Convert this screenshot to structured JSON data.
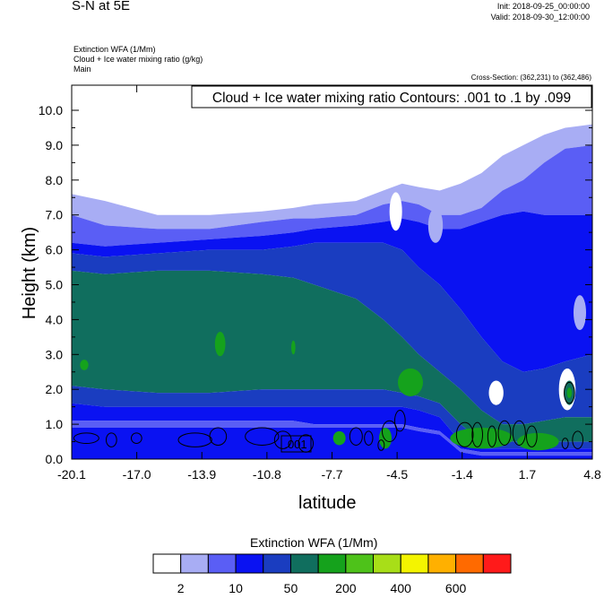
{
  "header": {
    "title": "S-N at 5E",
    "init": "Init: 2018-09-25_00:00:00",
    "valid": "Valid: 2018-09-30_12:00:00",
    "field_extinction": "Extinction WFA   (1/Mm)",
    "field_cloud": "Cloud + Ice water mixing ratio   (g/kg)",
    "field_main": "Main",
    "cross_section": "Cross-Section: (362,231) to (362,486)"
  },
  "chart_data": {
    "type": "heatmap",
    "title": "S-N at 5E",
    "contour_info": "Cloud + Ice water mixing ratio Contours: .001 to .1 by .099",
    "contour_label": ".001",
    "xlabel": "latitude",
    "ylabel": "Height (km)",
    "x_ticks": [
      "-20.1",
      "-17.0",
      "-13.9",
      "-10.8",
      "-7.7",
      "-4.5",
      "-1.4",
      "1.7",
      "4.8"
    ],
    "x_range": [
      -20.1,
      4.8
    ],
    "y_ticks": [
      "0.0",
      "1.0",
      "2.0",
      "3.0",
      "4.0",
      "5.0",
      "6.0",
      "7.0",
      "8.0",
      "9.0",
      "10.0"
    ],
    "y_range": [
      0,
      10.0
    ],
    "colorbar": {
      "title": "Extinction WFA  (1/Mm)",
      "labels": [
        "2",
        "10",
        "50",
        "200",
        "400",
        "600"
      ],
      "colors": [
        "#ffffff",
        "#a8adf4",
        "#5a5ef5",
        "#0a12f2",
        "#1a3dc0",
        "#106e5e",
        "#15a21c",
        "#4ec21a",
        "#a8de18",
        "#f4f400",
        "#ffb000",
        "#ff6a00",
        "#ff1a1a"
      ]
    },
    "extinction_bands": [
      {
        "level": 0,
        "x": [
          -20.1,
          -18.5,
          -16,
          -13.5,
          -11,
          -9.5,
          -8.5,
          -6.5,
          -5.2,
          -4.3,
          -3.5,
          -2.5,
          -1.5,
          -0.5,
          0.5,
          1.5,
          2.5,
          3.5,
          4.8
        ],
        "top": [
          10.0,
          10.0,
          10.0,
          10.0,
          10.0,
          10.0,
          10.0,
          10.0,
          10.0,
          10.0,
          10.0,
          10.0,
          10.0,
          10.0,
          10.0,
          10.0,
          10.0,
          10.0,
          10.0
        ],
        "bottom": [
          7.6,
          7.4,
          7.0,
          7.0,
          7.1,
          7.2,
          7.3,
          7.4,
          7.7,
          7.9,
          7.8,
          7.7,
          7.9,
          8.2,
          8.7,
          9.0,
          9.3,
          9.5,
          9.6
        ]
      },
      {
        "level": 1,
        "x": [
          -20.1,
          -18.5,
          -16,
          -13.5,
          -11,
          -9.5,
          -8.5,
          -6.5,
          -5.2,
          -4.3,
          -3.5,
          -2.5,
          -1.5,
          -0.5,
          0.5,
          1.5,
          2.5,
          3.5,
          4.8
        ],
        "top": [
          7.6,
          7.4,
          7.0,
          7.0,
          7.1,
          7.2,
          7.3,
          7.4,
          7.7,
          7.9,
          7.8,
          7.7,
          7.9,
          8.2,
          8.7,
          9.0,
          9.3,
          9.5,
          9.6
        ],
        "bottom": [
          7.0,
          6.7,
          6.6,
          6.6,
          6.8,
          6.9,
          6.9,
          7.0,
          7.3,
          7.4,
          7.3,
          7.0,
          7.0,
          7.2,
          7.7,
          8.0,
          8.5,
          8.9,
          9.0
        ]
      },
      {
        "level": 2,
        "x": [
          -20.1,
          -18.5,
          -16,
          -13.5,
          -11,
          -9.5,
          -8.5,
          -6.5,
          -5.2,
          -4.3,
          -3.5,
          -2.5,
          -1.5,
          -0.5,
          0.5,
          1.5,
          2.5,
          3.5,
          4.8
        ],
        "top": [
          7.0,
          6.7,
          6.6,
          6.6,
          6.8,
          6.9,
          6.9,
          7.0,
          7.3,
          7.4,
          7.3,
          7.0,
          7.0,
          7.2,
          7.7,
          8.0,
          8.5,
          8.9,
          9.0
        ],
        "bottom": [
          6.2,
          6.1,
          6.2,
          6.3,
          6.4,
          6.5,
          6.6,
          6.7,
          6.8,
          6.9,
          6.8,
          6.6,
          6.6,
          6.8,
          7.0,
          7.1,
          7.0,
          7.0,
          7.0
        ]
      },
      {
        "level": 3,
        "x": [
          -20.1,
          -18.5,
          -16,
          -13.5,
          -11,
          -9.5,
          -8.5,
          -6.5,
          -5.2,
          -4.3,
          -3.5,
          -2.5,
          -1.5,
          -0.5,
          0.5,
          1.5,
          2.5,
          3.5,
          4.8
        ],
        "top": [
          6.2,
          6.1,
          6.2,
          6.3,
          6.4,
          6.5,
          6.6,
          6.7,
          6.8,
          6.9,
          6.8,
          6.6,
          6.6,
          6.8,
          7.0,
          7.1,
          7.0,
          7.0,
          7.0
        ],
        "bottom": [
          5.9,
          5.8,
          5.9,
          6.0,
          6.0,
          6.1,
          6.2,
          6.2,
          6.2,
          6.0,
          5.5,
          5.0,
          4.3,
          3.5,
          2.8,
          2.5,
          2.6,
          2.8,
          3.0
        ]
      },
      {
        "level": 4,
        "x": [
          -20.1,
          -18.5,
          -16,
          -13.5,
          -11,
          -9.5,
          -8.5,
          -6.5,
          -5.2,
          -4.3,
          -3.5,
          -2.5,
          -1.5,
          -0.5,
          0.5,
          1.5,
          2.5,
          3.5,
          4.8
        ],
        "top": [
          5.9,
          5.8,
          5.9,
          6.0,
          6.0,
          6.1,
          6.2,
          6.2,
          6.2,
          6.0,
          5.5,
          5.0,
          4.3,
          3.5,
          2.8,
          2.5,
          2.6,
          2.8,
          3.0
        ],
        "bottom": [
          5.4,
          5.3,
          5.4,
          5.4,
          5.3,
          5.2,
          5.0,
          4.6,
          4.0,
          3.5,
          3.0,
          2.5,
          2.0,
          1.4,
          1.0,
          1.0,
          1.1,
          1.2,
          1.2
        ]
      },
      {
        "level": 5,
        "x": [
          -20.1,
          -18.5,
          -16,
          -13.5,
          -11,
          -9.5,
          -8.5,
          -6.5,
          -5.2,
          -4.3,
          -3.5,
          -2.5,
          -1.5,
          -0.5,
          0.5,
          1.5,
          2.5,
          3.5,
          4.8
        ],
        "top": [
          5.4,
          5.3,
          5.4,
          5.4,
          5.3,
          5.2,
          5.0,
          4.6,
          4.0,
          3.5,
          3.0,
          2.5,
          2.0,
          1.4,
          1.0,
          1.0,
          1.1,
          1.2,
          1.2
        ],
        "bottom": [
          2.1,
          2.0,
          1.9,
          1.9,
          2.0,
          2.0,
          2.0,
          2.0,
          2.0,
          1.9,
          1.8,
          1.6,
          1.0,
          0.5,
          0.5,
          0.5,
          0.5,
          0.5,
          0.5
        ]
      },
      {
        "level": 4,
        "x": [
          -20.1,
          -18.5,
          -16,
          -13.5,
          -11,
          -9.5,
          -8.5,
          -6.5,
          -5.2,
          -4.3,
          -3.5,
          -2.5,
          -1.5,
          -0.5,
          0.5,
          1.5,
          2.5,
          3.5,
          4.8
        ],
        "top": [
          2.1,
          2.0,
          1.9,
          1.9,
          2.0,
          2.0,
          2.0,
          2.0,
          2.0,
          1.9,
          1.8,
          1.6,
          1.0,
          0.5,
          0.5,
          0.5,
          0.5,
          0.5,
          0.5
        ],
        "bottom": [
          1.6,
          1.5,
          1.5,
          1.5,
          1.5,
          1.5,
          1.5,
          1.5,
          1.5,
          1.5,
          1.4,
          1.2,
          0.5,
          0.3,
          0.3,
          0.3,
          0.3,
          0.3,
          0.3
        ]
      },
      {
        "level": 3,
        "x": [
          -20.1,
          -18.5,
          -16,
          -13.5,
          -11,
          -9.5,
          -8.5,
          -6.5,
          -5.2,
          -4.3,
          -3.5,
          -2.5,
          -1.5,
          -0.5,
          0.5,
          1.5,
          2.5,
          3.5,
          4.8
        ],
        "top": [
          1.6,
          1.5,
          1.5,
          1.5,
          1.5,
          1.5,
          1.5,
          1.5,
          1.5,
          1.5,
          1.4,
          1.2,
          0.5,
          0.3,
          0.3,
          0.3,
          0.3,
          0.3,
          0.3
        ],
        "bottom": [
          1.1,
          1.1,
          1.1,
          1.1,
          1.1,
          1.1,
          1.0,
          1.0,
          1.0,
          1.0,
          0.9,
          0.8,
          0.3,
          0.2,
          0.2,
          0.2,
          0.2,
          0.2,
          0.2
        ]
      },
      {
        "level": 2,
        "x": [
          -20.1,
          -18.5,
          -16,
          -13.5,
          -11,
          -9.5,
          -8.5,
          -6.5,
          -5.2,
          -4.3,
          -3.5,
          -2.5,
          -1.5,
          -0.5,
          0.5,
          1.5,
          2.5,
          3.5,
          4.8
        ],
        "top": [
          1.1,
          1.1,
          1.1,
          1.1,
          1.1,
          1.1,
          1.0,
          1.0,
          1.0,
          1.0,
          0.9,
          0.8,
          0.3,
          0.2,
          0.2,
          0.2,
          0.2,
          0.2,
          0.2
        ],
        "bottom": [
          0.9,
          0.9,
          0.9,
          0.9,
          0.9,
          0.9,
          0.9,
          0.9,
          0.9,
          0.9,
          0.8,
          0.7,
          0.2,
          0.1,
          0.1,
          0.1,
          0.1,
          0.1,
          0.1
        ]
      },
      {
        "level": 3,
        "x": [
          -20.1,
          -18.5,
          -16,
          -13.5,
          -11,
          -9.5,
          -8.5,
          -6.5,
          -5.2,
          -4.3,
          -3.5,
          -2.5,
          -1.5,
          -0.5,
          0.5,
          1.5,
          2.5,
          3.5,
          4.8
        ],
        "top": [
          0.9,
          0.9,
          0.9,
          0.9,
          0.9,
          0.9,
          0.9,
          0.9,
          0.9,
          0.9,
          0.8,
          0.7,
          0.2,
          0.1,
          0.1,
          0.1,
          0.1,
          0.1,
          0.1
        ],
        "bottom": [
          0.0,
          0.0,
          0.0,
          0.0,
          0.0,
          0.0,
          0.0,
          0.0,
          0.0,
          0.0,
          0.0,
          0.0,
          0.0,
          0.0,
          0.0,
          0.0,
          0.0,
          0.0,
          0.0
        ]
      }
    ],
    "extinction_blobs": [
      {
        "level": 0,
        "x": -4.6,
        "y": 7.1,
        "rx": 0.3,
        "ry": 0.55
      },
      {
        "level": 1,
        "x": -2.7,
        "y": 6.7,
        "rx": 0.35,
        "ry": 0.5
      },
      {
        "level": 0,
        "x": 0.2,
        "y": 1.9,
        "rx": 0.35,
        "ry": 0.35
      },
      {
        "level": 0,
        "x": 3.6,
        "y": 2.0,
        "rx": 0.4,
        "ry": 0.6
      },
      {
        "level": 1,
        "x": 4.2,
        "y": 4.2,
        "rx": 0.3,
        "ry": 0.5
      },
      {
        "level": 6,
        "x": -3.9,
        "y": 2.2,
        "rx": 0.6,
        "ry": 0.4
      },
      {
        "level": 6,
        "x": -13.0,
        "y": 3.3,
        "rx": 0.25,
        "ry": 0.35
      },
      {
        "level": 6,
        "x": -9.5,
        "y": 3.2,
        "rx": 0.1,
        "ry": 0.2
      },
      {
        "level": 6,
        "x": -19.5,
        "y": 2.7,
        "rx": 0.2,
        "ry": 0.15
      },
      {
        "level": 5,
        "x": 3.7,
        "y": 1.9,
        "rx": 0.25,
        "ry": 0.35
      },
      {
        "level": 6,
        "x": 3.7,
        "y": 1.9,
        "rx": 0.12,
        "ry": 0.15
      },
      {
        "level": 6,
        "x": -0.5,
        "y": 0.6,
        "rx": 1.5,
        "ry": 0.3
      },
      {
        "level": 6,
        "x": 2.2,
        "y": 0.5,
        "rx": 1.0,
        "ry": 0.25
      },
      {
        "level": 6,
        "x": -7.3,
        "y": 0.6,
        "rx": 0.3,
        "ry": 0.2
      },
      {
        "level": 6,
        "x": -5.1,
        "y": 0.6,
        "rx": 0.3,
        "ry": 0.3
      }
    ],
    "cloud_contours": [
      {
        "x": -19.4,
        "y": 0.6,
        "rx": 0.6,
        "ry": 0.15
      },
      {
        "x": -18.2,
        "y": 0.55,
        "rx": 0.25,
        "ry": 0.2
      },
      {
        "x": -17.0,
        "y": 0.6,
        "rx": 0.25,
        "ry": 0.15
      },
      {
        "x": -14.2,
        "y": 0.55,
        "rx": 0.8,
        "ry": 0.2
      },
      {
        "x": -13.1,
        "y": 0.65,
        "rx": 0.4,
        "ry": 0.25
      },
      {
        "x": -11.0,
        "y": 0.65,
        "rx": 0.8,
        "ry": 0.25
      },
      {
        "x": -10.0,
        "y": 0.55,
        "rx": 0.4,
        "ry": 0.25
      },
      {
        "x": -8.9,
        "y": 0.45,
        "rx": 0.35,
        "ry": 0.25
      },
      {
        "x": -6.5,
        "y": 0.65,
        "rx": 0.3,
        "ry": 0.25
      },
      {
        "x": -5.9,
        "y": 0.6,
        "rx": 0.2,
        "ry": 0.2
      },
      {
        "x": -4.9,
        "y": 0.8,
        "rx": 0.35,
        "ry": 0.3
      },
      {
        "x": -4.4,
        "y": 1.1,
        "rx": 0.25,
        "ry": 0.3
      },
      {
        "x": -5.3,
        "y": 0.4,
        "rx": 0.15,
        "ry": 0.15
      },
      {
        "x": -1.3,
        "y": 0.7,
        "rx": 0.4,
        "ry": 0.35
      },
      {
        "x": -0.7,
        "y": 0.7,
        "rx": 0.25,
        "ry": 0.35
      },
      {
        "x": 0.0,
        "y": 0.65,
        "rx": 0.2,
        "ry": 0.3
      },
      {
        "x": 0.6,
        "y": 0.75,
        "rx": 0.3,
        "ry": 0.35
      },
      {
        "x": 1.3,
        "y": 0.75,
        "rx": 0.3,
        "ry": 0.35
      },
      {
        "x": 1.9,
        "y": 0.65,
        "rx": 0.25,
        "ry": 0.3
      },
      {
        "x": 3.7,
        "y": 1.9,
        "rx": 0.25,
        "ry": 0.3
      },
      {
        "x": 4.1,
        "y": 0.55,
        "rx": 0.25,
        "ry": 0.25
      },
      {
        "x": 3.5,
        "y": 0.45,
        "rx": 0.15,
        "ry": 0.15
      }
    ]
  }
}
